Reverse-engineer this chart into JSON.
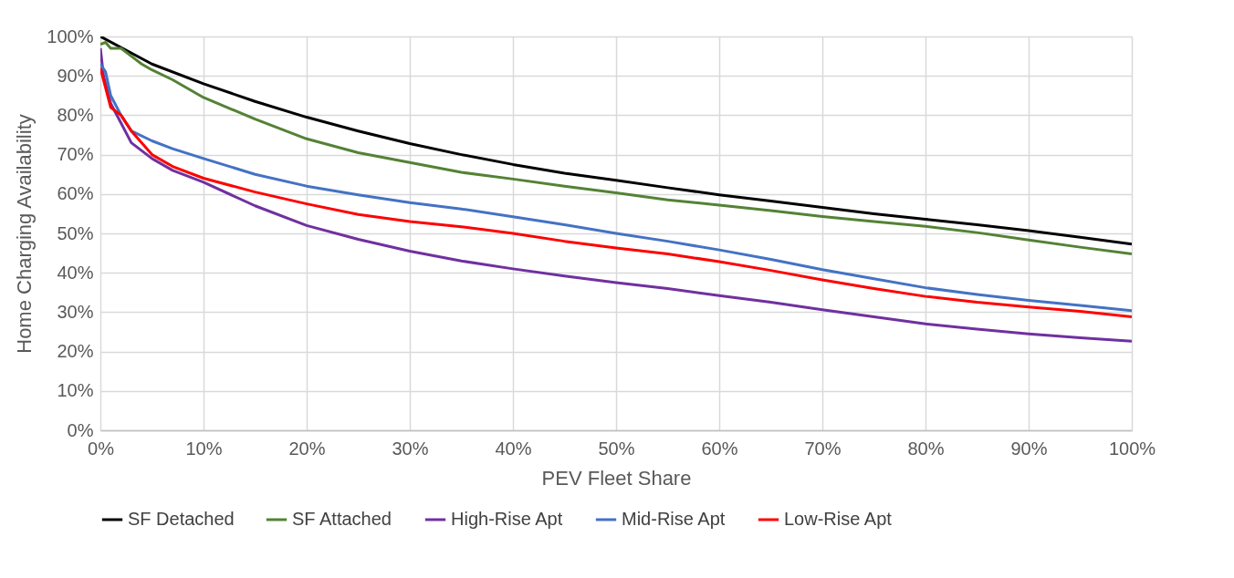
{
  "chart_data": {
    "type": "line",
    "xlabel": "PEV Fleet Share",
    "ylabel": "Home Charging Availability",
    "xlim": [
      0,
      1
    ],
    "ylim": [
      0,
      1
    ],
    "xticks": [
      {
        "value": 0,
        "label": "0%"
      },
      {
        "value": 0.1,
        "label": "10%"
      },
      {
        "value": 0.2,
        "label": "20%"
      },
      {
        "value": 0.3,
        "label": "30%"
      },
      {
        "value": 0.4,
        "label": "40%"
      },
      {
        "value": 0.5,
        "label": "50%"
      },
      {
        "value": 0.6,
        "label": "60%"
      },
      {
        "value": 0.7,
        "label": "70%"
      },
      {
        "value": 0.8,
        "label": "80%"
      },
      {
        "value": 0.9,
        "label": "90%"
      },
      {
        "value": 1,
        "label": "100%"
      }
    ],
    "yticks": [
      {
        "value": 0,
        "label": "0%"
      },
      {
        "value": 0.1,
        "label": "10%"
      },
      {
        "value": 0.2,
        "label": "20%"
      },
      {
        "value": 0.3,
        "label": "30%"
      },
      {
        "value": 0.4,
        "label": "40%"
      },
      {
        "value": 0.5,
        "label": "50%"
      },
      {
        "value": 0.6,
        "label": "60%"
      },
      {
        "value": 0.7,
        "label": "70%"
      },
      {
        "value": 0.8,
        "label": "80%"
      },
      {
        "value": 0.9,
        "label": "90%"
      },
      {
        "value": 1,
        "label": "100%"
      }
    ],
    "grid": true,
    "legend": "bottom",
    "marker": "none",
    "line_style": "solid",
    "series": [
      {
        "name": "SF Detached",
        "color": "#000000",
        "x": [
          0,
          0.05,
          0.1,
          0.15,
          0.2,
          0.25,
          0.3,
          0.35,
          0.4,
          0.45,
          0.5,
          0.55,
          0.6,
          0.65,
          0.7,
          0.75,
          0.8,
          0.85,
          0.9,
          0.95,
          1
        ],
        "values": [
          1.0,
          0.93,
          0.88,
          0.835,
          0.795,
          0.76,
          0.728,
          0.7,
          0.675,
          0.653,
          0.635,
          0.616,
          0.598,
          0.582,
          0.566,
          0.55,
          0.536,
          0.522,
          0.507,
          0.49,
          0.473
        ]
      },
      {
        "name": "SF Attached",
        "color": "#548235",
        "x": [
          0,
          0.005,
          0.01,
          0.02,
          0.03,
          0.04,
          0.05,
          0.07,
          0.1,
          0.15,
          0.2,
          0.25,
          0.3,
          0.35,
          0.4,
          0.45,
          0.5,
          0.55,
          0.6,
          0.65,
          0.7,
          0.75,
          0.8,
          0.85,
          0.9,
          0.95,
          1
        ],
        "values": [
          0.98,
          0.985,
          0.97,
          0.97,
          0.95,
          0.93,
          0.915,
          0.89,
          0.845,
          0.79,
          0.74,
          0.705,
          0.68,
          0.655,
          0.638,
          0.62,
          0.603,
          0.585,
          0.572,
          0.558,
          0.543,
          0.53,
          0.518,
          0.502,
          0.483,
          0.465,
          0.448
        ]
      },
      {
        "name": "High-Rise Apt",
        "color": "#7030a0",
        "x": [
          0,
          0.003,
          0.01,
          0.02,
          0.03,
          0.05,
          0.07,
          0.1,
          0.15,
          0.2,
          0.25,
          0.3,
          0.35,
          0.4,
          0.45,
          0.5,
          0.55,
          0.6,
          0.65,
          0.7,
          0.75,
          0.8,
          0.85,
          0.9,
          0.95,
          1
        ],
        "values": [
          0.97,
          0.9,
          0.83,
          0.78,
          0.73,
          0.69,
          0.66,
          0.63,
          0.57,
          0.52,
          0.485,
          0.455,
          0.43,
          0.41,
          0.392,
          0.375,
          0.36,
          0.342,
          0.325,
          0.306,
          0.288,
          0.27,
          0.257,
          0.245,
          0.235,
          0.226
        ]
      },
      {
        "name": "Mid-Rise Apt",
        "color": "#4472c4",
        "x": [
          0,
          0.005,
          0.01,
          0.02,
          0.03,
          0.05,
          0.07,
          0.1,
          0.15,
          0.2,
          0.25,
          0.3,
          0.35,
          0.4,
          0.45,
          0.5,
          0.55,
          0.6,
          0.65,
          0.7,
          0.75,
          0.8,
          0.85,
          0.9,
          0.95,
          1
        ],
        "values": [
          0.93,
          0.91,
          0.85,
          0.8,
          0.76,
          0.735,
          0.715,
          0.69,
          0.65,
          0.62,
          0.598,
          0.578,
          0.562,
          0.542,
          0.522,
          0.5,
          0.48,
          0.458,
          0.434,
          0.408,
          0.385,
          0.362,
          0.345,
          0.33,
          0.317,
          0.304
        ]
      },
      {
        "name": "Low-Rise Apt",
        "color": "#ff0000",
        "x": [
          0,
          0.003,
          0.01,
          0.02,
          0.03,
          0.05,
          0.07,
          0.1,
          0.15,
          0.2,
          0.25,
          0.3,
          0.35,
          0.4,
          0.45,
          0.5,
          0.55,
          0.6,
          0.65,
          0.7,
          0.75,
          0.8,
          0.85,
          0.9,
          0.95,
          1
        ],
        "values": [
          0.92,
          0.89,
          0.82,
          0.8,
          0.76,
          0.7,
          0.67,
          0.64,
          0.605,
          0.575,
          0.548,
          0.53,
          0.517,
          0.5,
          0.48,
          0.463,
          0.448,
          0.428,
          0.406,
          0.382,
          0.36,
          0.34,
          0.325,
          0.313,
          0.302,
          0.288
        ]
      }
    ]
  }
}
